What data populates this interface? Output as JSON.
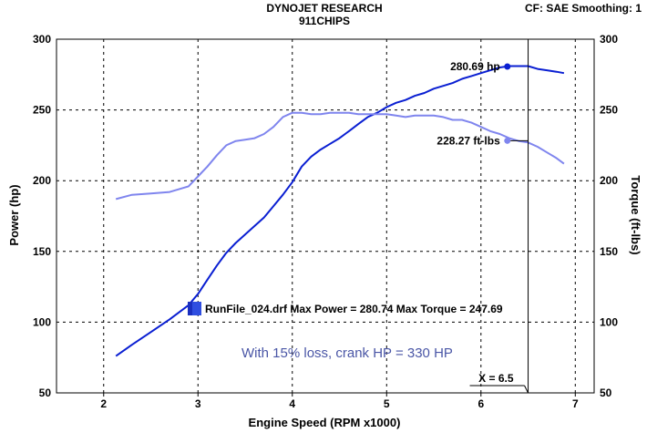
{
  "header": {
    "title": "DYNOJET RESEARCH",
    "subtitle": "911CHIPS",
    "settings": "CF: SAE  Smoothing: 1"
  },
  "colors": {
    "power": "#0a1fd2",
    "torque": "#7f85ee",
    "legend_box": "#2f4ee0",
    "note": "#4a56a6",
    "cursor": "#000000"
  },
  "annotations": {
    "power_peak": "280.69 hp",
    "torque_at_cursor": "228.27 ft-lbs",
    "cursor": "X = 6.5",
    "legend": "RunFile_024.drf Max Power = 280.74 Max Torque = 247.69",
    "note": "With 15% loss, crank HP = 330 HP"
  },
  "chart_data": {
    "type": "line",
    "xlabel": "Engine Speed (RPM x1000)",
    "ylabel": "Power (hp)",
    "y2label": "Torque (ft-lbs)",
    "xlim": [
      1.5,
      7.2
    ],
    "ylim": [
      50,
      300
    ],
    "y2lim": [
      50,
      300
    ],
    "xticks": [
      2,
      3,
      4,
      5,
      6,
      7
    ],
    "yticks": [
      50,
      100,
      150,
      200,
      250,
      300
    ],
    "y2ticks": [
      50,
      100,
      150,
      200,
      250,
      300
    ],
    "grid": true,
    "cursor_x": 6.5,
    "markers": {
      "power_peak": {
        "x": 6.28,
        "y": 280.69
      },
      "torque_at_cursor": {
        "x": 6.28,
        "y": 228.27
      }
    },
    "series": [
      {
        "name": "Power",
        "axis": "left",
        "x": [
          2.13,
          2.3,
          2.5,
          2.7,
          2.9,
          3.0,
          3.1,
          3.2,
          3.3,
          3.4,
          3.5,
          3.6,
          3.7,
          3.8,
          3.9,
          4.0,
          4.1,
          4.2,
          4.3,
          4.4,
          4.5,
          4.6,
          4.7,
          4.8,
          4.9,
          5.0,
          5.1,
          5.2,
          5.3,
          5.4,
          5.5,
          5.6,
          5.7,
          5.8,
          5.9,
          6.0,
          6.1,
          6.2,
          6.3,
          6.4,
          6.5,
          6.6,
          6.7,
          6.8,
          6.88
        ],
        "values": [
          76,
          84,
          93,
          102,
          112,
          120,
          130,
          140,
          149,
          156,
          162,
          168,
          174,
          182,
          190,
          199,
          210,
          217,
          222,
          226,
          230,
          235,
          240,
          245,
          248,
          252,
          255,
          257,
          260,
          262,
          265,
          267,
          269,
          272,
          274,
          276,
          278,
          280,
          281,
          281,
          281,
          279,
          278,
          277,
          276
        ]
      },
      {
        "name": "Torque",
        "axis": "right",
        "x": [
          2.13,
          2.3,
          2.5,
          2.7,
          2.9,
          3.0,
          3.1,
          3.2,
          3.3,
          3.4,
          3.5,
          3.6,
          3.7,
          3.8,
          3.9,
          4.0,
          4.1,
          4.2,
          4.3,
          4.4,
          4.5,
          4.6,
          4.7,
          4.8,
          4.9,
          5.0,
          5.1,
          5.2,
          5.3,
          5.4,
          5.5,
          5.6,
          5.7,
          5.8,
          5.9,
          6.0,
          6.1,
          6.2,
          6.3,
          6.4,
          6.5,
          6.6,
          6.7,
          6.8,
          6.88
        ],
        "values": [
          187,
          190,
          191,
          192,
          196,
          203,
          210,
          218,
          225,
          228,
          229,
          230,
          233,
          238,
          245,
          248,
          248,
          247,
          247,
          248,
          248,
          248,
          247,
          247,
          247,
          247,
          246,
          245,
          246,
          246,
          246,
          245,
          243,
          243,
          241,
          238,
          235,
          233,
          230,
          228,
          227,
          224,
          220,
          216,
          212
        ]
      }
    ]
  }
}
